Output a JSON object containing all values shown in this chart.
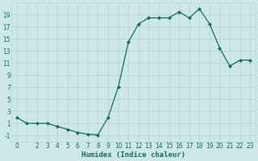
{
  "x": [
    0,
    1,
    2,
    3,
    4,
    5,
    6,
    7,
    8,
    9,
    10,
    11,
    12,
    13,
    14,
    15,
    16,
    17,
    18,
    19,
    20,
    21,
    22,
    23
  ],
  "y": [
    2,
    1,
    1,
    1,
    0.5,
    0,
    -0.5,
    -0.8,
    -0.9,
    2,
    7,
    14.5,
    17.5,
    18.5,
    18.5,
    18.5,
    19.5,
    18.5,
    20,
    17.5,
    13.5,
    10.5,
    11.5,
    11.5
  ],
  "bg_color": "#cce8e8",
  "line_color": "#1a6b5a",
  "marker_color": "#1a6b5a",
  "xlabel": "Humidex (Indice chaleur)",
  "xlabel_fontsize": 6.5,
  "ylabel_ticks": [
    -1,
    1,
    3,
    5,
    7,
    9,
    11,
    13,
    15,
    17,
    19
  ],
  "xtick_labels": [
    "0",
    "",
    "2",
    "3",
    "4",
    "5",
    "6",
    "7",
    "8",
    "9",
    "10",
    "11",
    "12",
    "13",
    "14",
    "15",
    "16",
    "17",
    "18",
    "19",
    "20",
    "21",
    "22",
    "23"
  ],
  "xlim": [
    -0.5,
    23.5
  ],
  "ylim": [
    -2,
    21
  ],
  "major_grid_color": "#b8d4d4",
  "minor_grid_color": "#d0e8e8",
  "tick_fontsize": 5.5,
  "grid_major_lw": 0.6,
  "grid_minor_lw": 0.3
}
